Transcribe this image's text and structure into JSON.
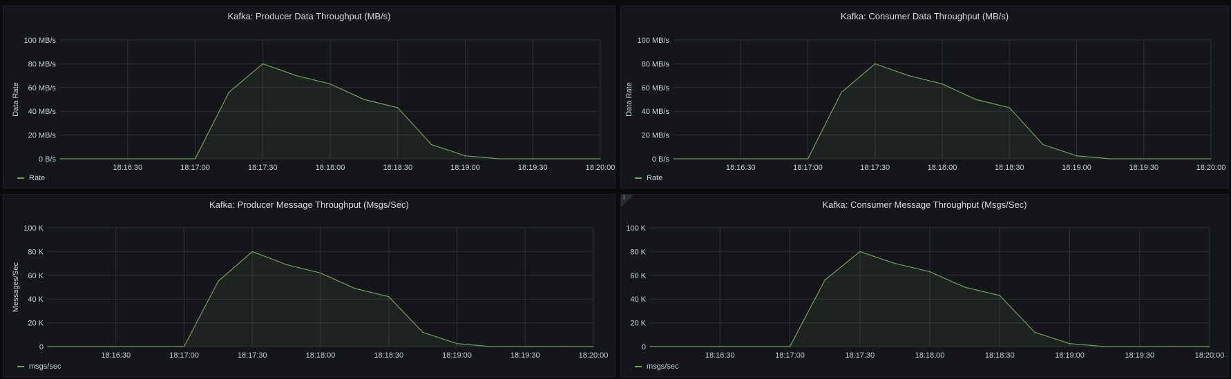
{
  "colors": {
    "series": "#73a05f",
    "grid": "#2c3036",
    "text": "#c7d0d9"
  },
  "chart_data": [
    {
      "type": "area",
      "title": "Kafka: Producer Data Throughput (MB/s)",
      "ylabel": "Data Rate",
      "x": [
        "18:16:00",
        "18:16:15",
        "18:16:30",
        "18:16:45",
        "18:17:00",
        "18:17:15",
        "18:17:30",
        "18:17:45",
        "18:18:00",
        "18:18:15",
        "18:18:30",
        "18:18:45",
        "18:19:00",
        "18:19:15",
        "18:19:30",
        "18:19:45",
        "18:20:00"
      ],
      "xticks": [
        "18:16:30",
        "18:17:00",
        "18:17:30",
        "18:18:00",
        "18:18:30",
        "18:19:00",
        "18:19:30",
        "18:20:00"
      ],
      "yticks": [
        "0 B/s",
        "20 MB/s",
        "40 MB/s",
        "60 MB/s",
        "80 MB/s",
        "100 MB/s"
      ],
      "ylim": [
        0,
        100
      ],
      "series": [
        {
          "name": "Rate",
          "values": [
            0,
            0,
            0,
            0,
            0,
            56,
            80,
            70,
            63,
            50,
            43,
            12,
            2.5,
            0,
            0,
            0,
            0
          ]
        }
      ]
    },
    {
      "type": "area",
      "title": "Kafka: Consumer Data Throughput (MB/s)",
      "ylabel": "Data Rate",
      "x": [
        "18:16:00",
        "18:16:15",
        "18:16:30",
        "18:16:45",
        "18:17:00",
        "18:17:15",
        "18:17:30",
        "18:17:45",
        "18:18:00",
        "18:18:15",
        "18:18:30",
        "18:18:45",
        "18:19:00",
        "18:19:15",
        "18:19:30",
        "18:19:45",
        "18:20:00"
      ],
      "xticks": [
        "18:16:30",
        "18:17:00",
        "18:17:30",
        "18:18:00",
        "18:18:30",
        "18:19:00",
        "18:19:30",
        "18:20:00"
      ],
      "yticks": [
        "0 B/s",
        "20 MB/s",
        "40 MB/s",
        "60 MB/s",
        "80 MB/s",
        "100 MB/s"
      ],
      "ylim": [
        0,
        100
      ],
      "series": [
        {
          "name": "Rate",
          "values": [
            0,
            0,
            0,
            0,
            0,
            56,
            80,
            70,
            63,
            50,
            43,
            12,
            2.5,
            0,
            0,
            0,
            0
          ]
        }
      ]
    },
    {
      "type": "area",
      "title": "Kafka: Producer Message Throughput (Msgs/Sec)",
      "ylabel": "Messages/Sec",
      "x": [
        "18:16:00",
        "18:16:15",
        "18:16:30",
        "18:16:45",
        "18:17:00",
        "18:17:15",
        "18:17:30",
        "18:17:45",
        "18:18:00",
        "18:18:15",
        "18:18:30",
        "18:18:45",
        "18:19:00",
        "18:19:15",
        "18:19:30",
        "18:19:45",
        "18:20:00"
      ],
      "xticks": [
        "18:16:30",
        "18:17:00",
        "18:17:30",
        "18:18:00",
        "18:18:30",
        "18:19:00",
        "18:19:30",
        "18:20:00"
      ],
      "yticks": [
        "0",
        "20 K",
        "40 K",
        "60 K",
        "80 K",
        "100 K"
      ],
      "ylim": [
        0,
        100000
      ],
      "series": [
        {
          "name": "msgs/sec",
          "values": [
            0,
            0,
            0,
            0,
            0,
            55000,
            80000,
            69000,
            62000,
            49000,
            42000,
            12000,
            2500,
            0,
            0,
            0,
            0
          ]
        }
      ]
    },
    {
      "type": "area",
      "title": "Kafka: Consumer Message Throughput (Msgs/Sec)",
      "ylabel": "",
      "x": [
        "18:16:00",
        "18:16:15",
        "18:16:30",
        "18:16:45",
        "18:17:00",
        "18:17:15",
        "18:17:30",
        "18:17:45",
        "18:18:00",
        "18:18:15",
        "18:18:30",
        "18:18:45",
        "18:19:00",
        "18:19:15",
        "18:19:30",
        "18:19:45",
        "18:20:00"
      ],
      "xticks": [
        "18:16:30",
        "18:17:00",
        "18:17:30",
        "18:18:00",
        "18:18:30",
        "18:19:00",
        "18:19:30",
        "18:20:00"
      ],
      "yticks": [
        "0",
        "20 K",
        "40 K",
        "60 K",
        "80 K",
        "100 K"
      ],
      "ylim": [
        0,
        100000
      ],
      "series": [
        {
          "name": "msgs/sec",
          "values": [
            0,
            0,
            0,
            0,
            0,
            56000,
            80000,
            70000,
            63000,
            50000,
            43000,
            12000,
            2500,
            0,
            0,
            0,
            0
          ]
        }
      ]
    }
  ],
  "info_icon": {
    "glyph": "i",
    "icon": "info-icon"
  }
}
